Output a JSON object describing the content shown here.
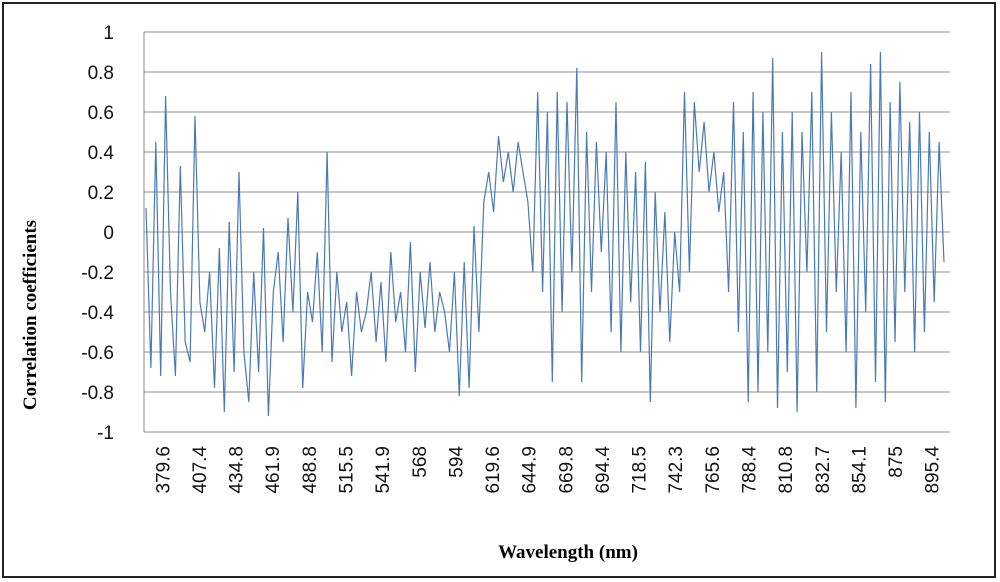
{
  "chart_data": {
    "type": "line",
    "title": "",
    "xlabel": "Wavelength (nm)",
    "ylabel": "Correlation coefficients",
    "ylim": [
      -1,
      1
    ],
    "yticks": [
      1,
      0.8,
      0.6,
      0.4,
      0.2,
      0,
      -0.2,
      -0.4,
      -0.6,
      -0.8,
      -1
    ],
    "ytick_labels": [
      "1",
      "0.8",
      "0.6",
      "0.4",
      "0.2",
      "0",
      "-0.2",
      "-0.4",
      "-0.6",
      "-0.8",
      "-1"
    ],
    "xtick_labels": [
      "379.6",
      "407.4",
      "434.8",
      "461.9",
      "488.8",
      "515.5",
      "541.9",
      "568",
      "594",
      "619.6",
      "644.9",
      "669.8",
      "694.4",
      "718.5",
      "742.3",
      "765.6",
      "788.4",
      "810.8",
      "832.7",
      "854.1",
      "875",
      "895.4"
    ],
    "grid": "horizontal",
    "line_color": "#4a7ab5",
    "series": [
      {
        "values": [
          0.12,
          -0.68,
          0.45,
          -0.72,
          0.68,
          -0.3,
          -0.72,
          0.33,
          -0.55,
          -0.65,
          0.58,
          -0.35,
          -0.5,
          -0.2,
          -0.78,
          -0.08,
          -0.9,
          0.05,
          -0.7,
          0.3,
          -0.6,
          -0.85,
          -0.2,
          -0.7,
          0.02,
          -0.92,
          -0.3,
          -0.1,
          -0.55,
          0.07,
          -0.4,
          0.2,
          -0.78,
          -0.3,
          -0.45,
          -0.1,
          -0.6,
          0.4,
          -0.65,
          -0.2,
          -0.5,
          -0.35,
          -0.72,
          -0.3,
          -0.5,
          -0.4,
          -0.2,
          -0.55,
          -0.25,
          -0.65,
          -0.1,
          -0.45,
          -0.3,
          -0.6,
          -0.05,
          -0.7,
          -0.2,
          -0.48,
          -0.15,
          -0.5,
          -0.3,
          -0.4,
          -0.6,
          -0.2,
          -0.82,
          -0.15,
          -0.78,
          0.03,
          -0.5,
          0.15,
          0.3,
          0.1,
          0.48,
          0.25,
          0.4,
          0.2,
          0.45,
          0.3,
          0.15,
          -0.2,
          0.7,
          -0.3,
          0.6,
          -0.75,
          0.7,
          -0.4,
          0.65,
          -0.2,
          0.82,
          -0.75,
          0.5,
          -0.3,
          0.45,
          -0.1,
          0.4,
          -0.5,
          0.65,
          -0.6,
          0.4,
          -0.35,
          0.3,
          -0.6,
          0.35,
          -0.85,
          0.2,
          -0.4,
          0.1,
          -0.55,
          0.0,
          -0.3,
          0.7,
          -0.2,
          0.65,
          0.3,
          0.55,
          0.2,
          0.4,
          0.1,
          0.3,
          -0.3,
          0.65,
          -0.5,
          0.5,
          -0.85,
          0.7,
          -0.8,
          0.6,
          -0.6,
          0.87,
          -0.88,
          0.5,
          -0.7,
          0.6,
          -0.9,
          0.5,
          -0.2,
          0.7,
          -0.8,
          0.9,
          -0.5,
          0.6,
          -0.3,
          0.4,
          -0.6,
          0.7,
          -0.88,
          0.5,
          -0.4,
          0.84,
          -0.75,
          0.9,
          -0.85,
          0.65,
          -0.55,
          0.75,
          -0.3,
          0.55,
          -0.6,
          0.6,
          -0.5,
          0.5,
          -0.35,
          0.45,
          -0.15
        ]
      }
    ]
  }
}
